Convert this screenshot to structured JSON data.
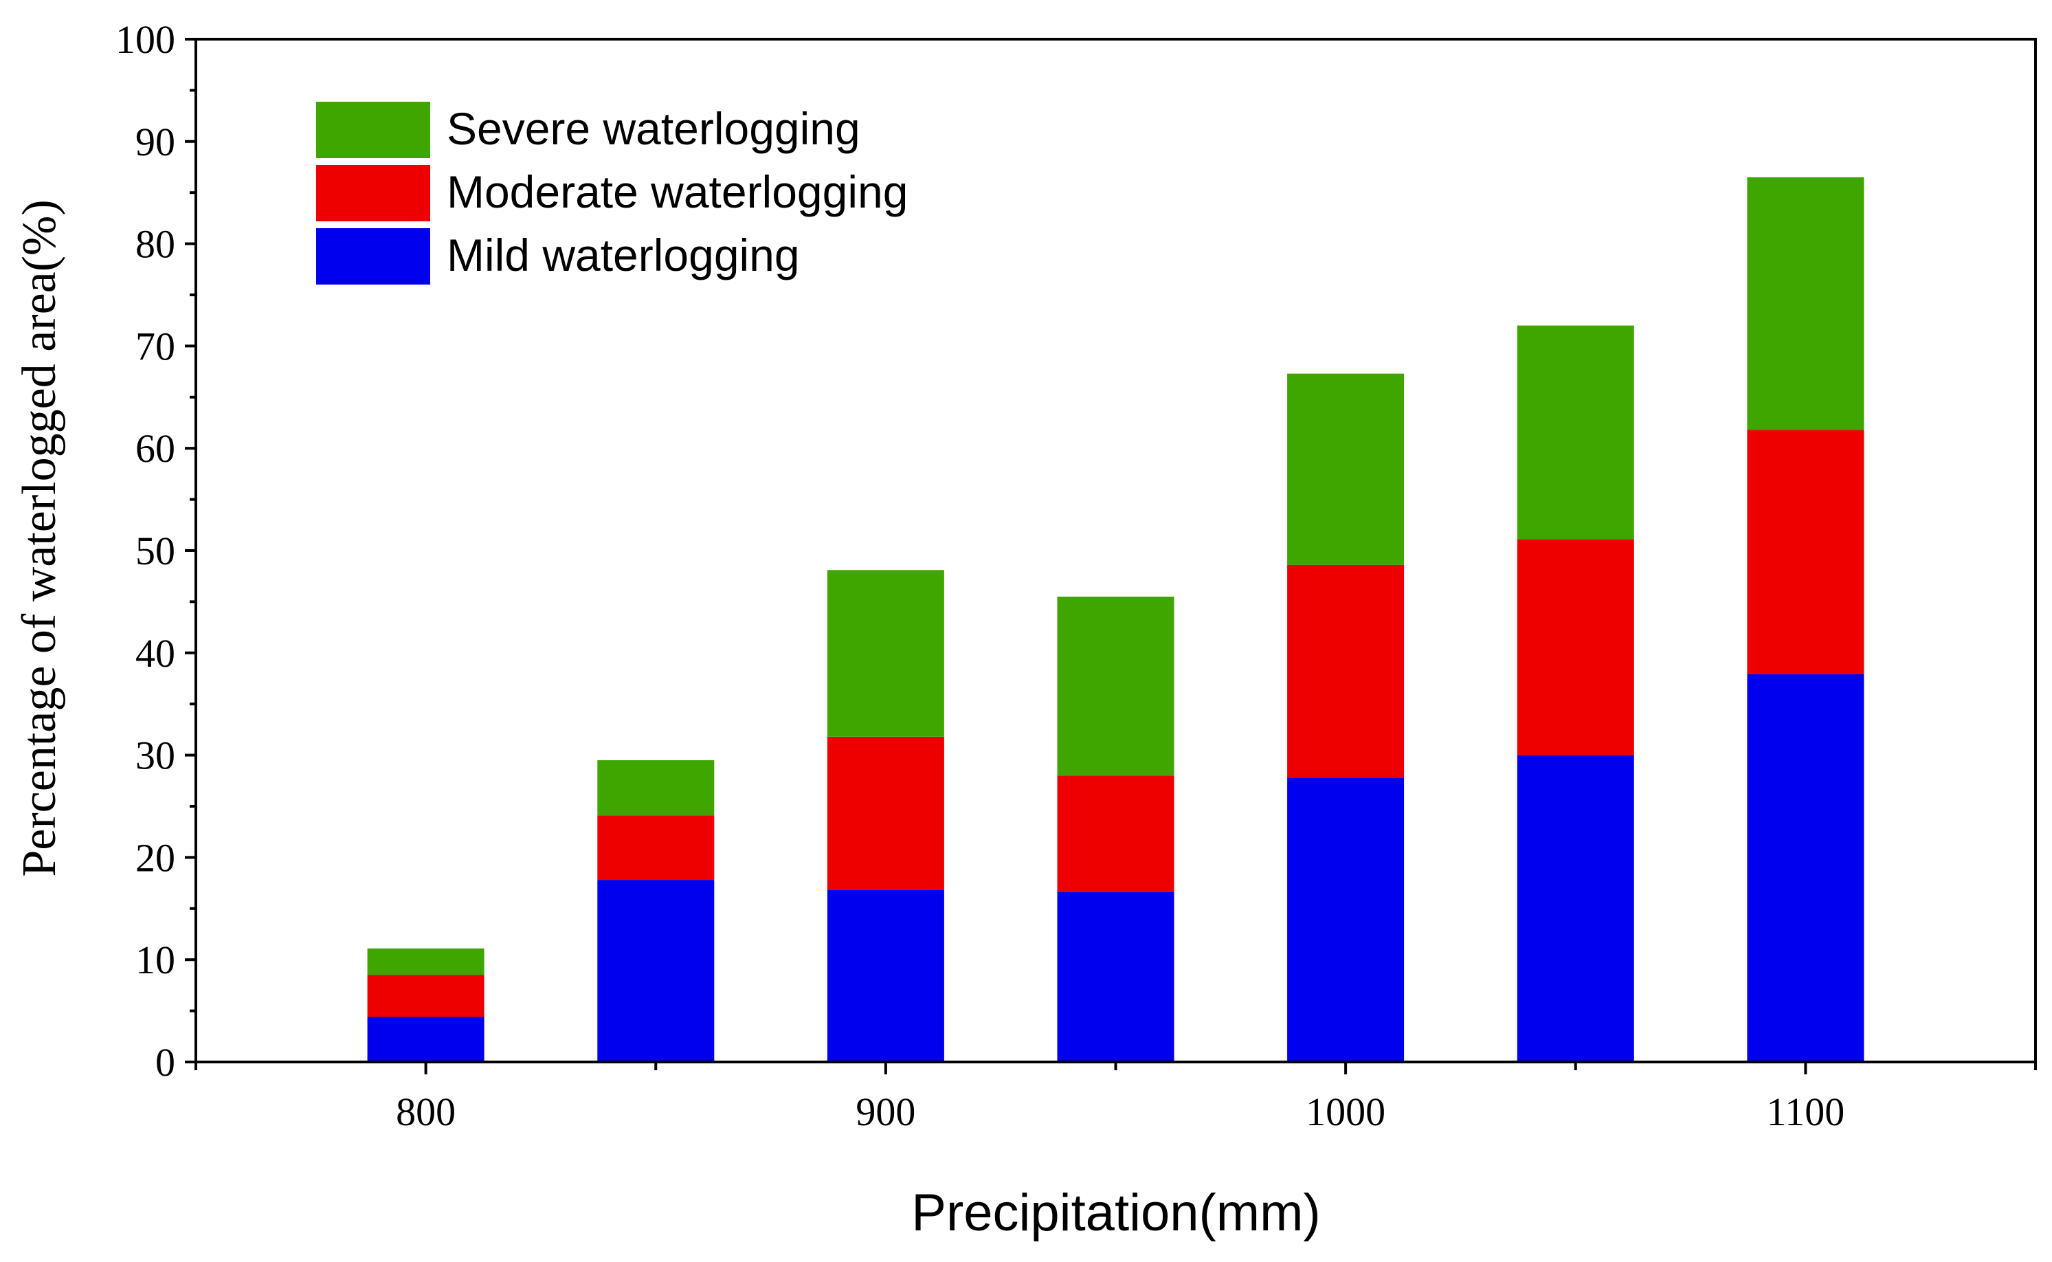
{
  "chart_data": {
    "type": "bar",
    "stacked": true,
    "title": "",
    "xlabel": "Precipitation(mm)",
    "ylabel": "Percentage of waterlogged area(%)",
    "x_values": [
      800,
      850,
      900,
      950,
      1000,
      1050,
      1100
    ],
    "xlim": [
      750,
      1150
    ],
    "x_ticks": [
      800,
      900,
      1000,
      1100
    ],
    "x_tick_labels": [
      "800",
      "900",
      "1000",
      "1100"
    ],
    "ylim": [
      0,
      100
    ],
    "y_ticks": [
      0,
      10,
      20,
      30,
      40,
      50,
      60,
      70,
      80,
      90,
      100
    ],
    "y_tick_labels": [
      "0",
      "10",
      "20",
      "30",
      "40",
      "50",
      "60",
      "70",
      "80",
      "90",
      "100"
    ],
    "grid": false,
    "legend_position": "top-left",
    "series": [
      {
        "name": "Mild waterlogging",
        "color": "#0000ee",
        "values": [
          4.4,
          17.8,
          16.8,
          16.6,
          27.8,
          30.0,
          37.9
        ]
      },
      {
        "name": "Moderate waterlogging",
        "color": "#ee0000",
        "values": [
          4.1,
          6.3,
          15.0,
          11.4,
          20.8,
          21.1,
          23.9
        ]
      },
      {
        "name": "Severe waterlogging",
        "color": "#3fa600",
        "values": [
          2.6,
          5.4,
          16.3,
          17.5,
          18.7,
          20.9,
          24.7
        ]
      }
    ],
    "legend_order": [
      "Severe waterlogging",
      "Moderate waterlogging",
      "Mild waterlogging"
    ]
  }
}
